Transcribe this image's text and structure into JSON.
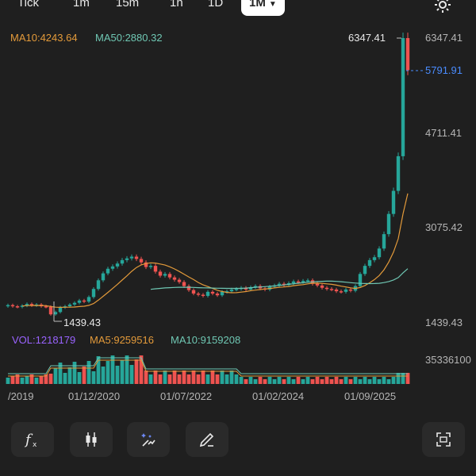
{
  "timeframes": [
    {
      "label": "Tick"
    },
    {
      "label": "1m"
    },
    {
      "label": "15m"
    },
    {
      "label": "1h"
    },
    {
      "label": "1D"
    },
    {
      "label": "1M",
      "active": true
    }
  ],
  "legend": {
    "ma10": "MA10:4243.64",
    "ma50": "MA50:2880.32"
  },
  "price_axis": {
    "ticks": [
      "6347.41",
      "4711.41",
      "3075.42",
      "1439.43"
    ],
    "current_price": "5791.91",
    "high_label": "6347.41",
    "low_label": "1439.43"
  },
  "volume": {
    "vol_label": "VOL:1218179",
    "ma5_label": "MA5:9259516",
    "ma10_label": "MA10:9159208",
    "max_label": "35336100"
  },
  "x_axis": {
    "ticks": [
      "/2019",
      "01/12/2020",
      "01/07/2022",
      "01/02/2024",
      "01/09/2025"
    ]
  },
  "colors": {
    "up": "#26a69a",
    "down": "#ef5350",
    "ma10": "#e39a3a",
    "ma50": "#6fc7b3",
    "current": "#4a8cff"
  },
  "chart_data": {
    "type": "candlestick",
    "y_range": [
      1439.43,
      6347.41
    ],
    "series": [
      {
        "name": "MA10",
        "value": 4243.64
      },
      {
        "name": "MA50",
        "value": 2880.32
      }
    ],
    "last": 5791.91,
    "high": 6347.41,
    "low": 1439.43
  },
  "toolbar": [
    {
      "icon": "function-icon"
    },
    {
      "icon": "candlestick-icon"
    },
    {
      "icon": "magic-wand-icon"
    },
    {
      "icon": "pencil-icon"
    },
    {
      "icon": "fullscreen-icon"
    }
  ]
}
